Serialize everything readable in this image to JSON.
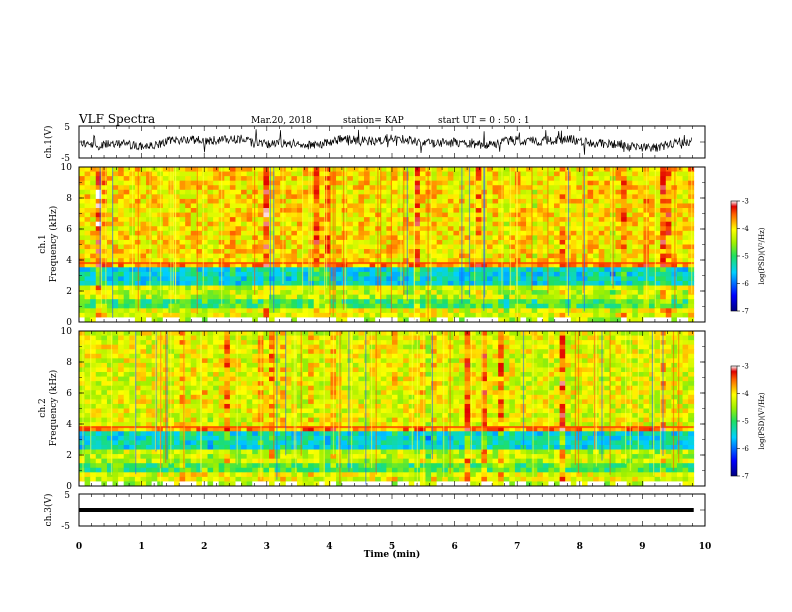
{
  "header": {
    "title": "VLF Spectra",
    "date": "Mar.20, 2018",
    "station": "station= KAP",
    "start_ut": "start  UT =   0  : 50 : 1"
  },
  "chart_data": {
    "type": "heatmap",
    "x_axis": {
      "label": "Time  (min)",
      "range": [
        0,
        10
      ],
      "ticks": [
        "0",
        "1",
        "2",
        "3",
        "4",
        "5",
        "6",
        "7",
        "8",
        "9",
        "10"
      ]
    },
    "panels": [
      {
        "id": "ch1-waveform",
        "type": "line",
        "ylabel": "ch.1(V)",
        "yrange": [
          -5,
          5
        ],
        "ticks": [
          "5",
          "-5"
        ]
      },
      {
        "id": "ch1-spectrogram",
        "type": "heatmap",
        "ylabel_top": "ch.1",
        "ylabel": "Frequency  (kHz)",
        "yrange": [
          0,
          10
        ],
        "ticks": [
          "0",
          "2",
          "4",
          "6",
          "8",
          "10"
        ]
      },
      {
        "id": "ch2-spectrogram",
        "type": "heatmap",
        "ylabel_top": "ch.2",
        "ylabel": "Frequency  (kHz)",
        "yrange": [
          0,
          10
        ],
        "ticks": [
          "0",
          "2",
          "4",
          "6",
          "8",
          "10"
        ]
      },
      {
        "id": "ch3-waveform",
        "type": "line",
        "ylabel": "ch.3(V)",
        "yrange": [
          -5,
          5
        ],
        "ticks": [
          "5",
          "-5"
        ],
        "level": 0
      }
    ],
    "colorbar": {
      "label": "log(PSD)(V²/Hz)",
      "range": [
        -7,
        -3
      ],
      "ticks": [
        "-3",
        "-4",
        "-5",
        "-6",
        "-7"
      ]
    },
    "data_extent_min": 9.82
  }
}
